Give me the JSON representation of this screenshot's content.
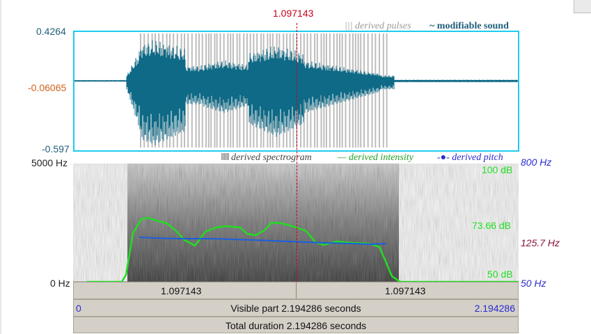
{
  "cursor": {
    "time": "1.097143"
  },
  "waveform": {
    "y_top": "0.4264",
    "y_mid": "-0.06065",
    "y_bottom": "-0.597",
    "legend_pulses": "||| derived pulses",
    "legend_sound": "~ modifiable sound"
  },
  "spectrogram": {
    "freq_top": "5000 Hz",
    "freq_bottom": "0 Hz",
    "legend_spectrogram": "derived spectrogram",
    "legend_intensity": "— derived intensity",
    "legend_pitch": "-●- derived pitch",
    "pitch_top": "800 Hz",
    "pitch_mid": "125.7 Hz",
    "pitch_bottom": "50 Hz",
    "intensity_top": "100 dB",
    "intensity_mid": "73.66 dB",
    "intensity_bottom": "50 dB"
  },
  "time_bars": {
    "left_segment": "1.097143",
    "right_segment": "1.097143",
    "visible_start": "0",
    "visible_label": "Visible part 2.194286 seconds",
    "visible_end": "2.194286",
    "total_label": "Total duration 2.194286 seconds"
  },
  "colors": {
    "waveform": "#0e6a86",
    "pulses": "#bdbdbd",
    "frame": "#1ecbef",
    "cursor": "#c8001c",
    "intensity": "#22dd22",
    "pitch": "#1a5ee0"
  }
}
